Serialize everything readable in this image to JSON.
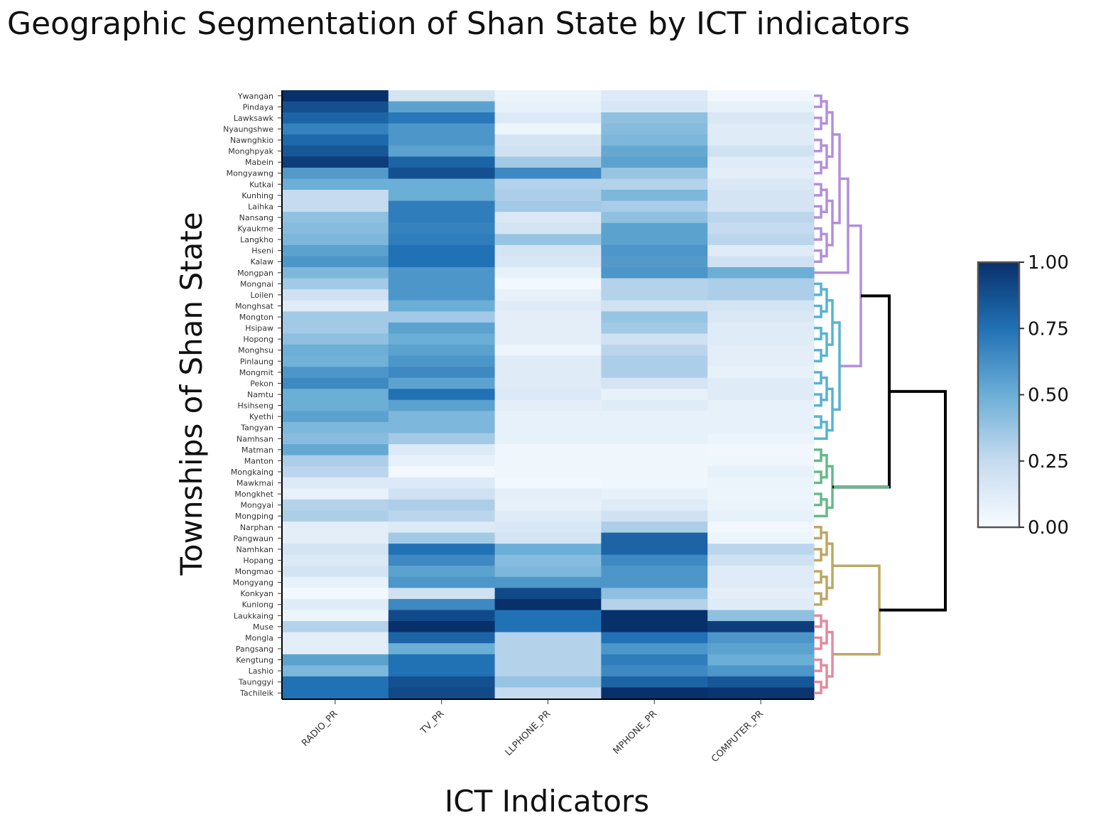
{
  "title": "Geographic Segmentation of Shan State by ICT indicators",
  "chart_data": {
    "type": "heatmap",
    "title": "Geographic Segmentation of Shan State by ICT indicators",
    "xlabel": "ICT Indicators",
    "ylabel": "Townships of Shan State",
    "columns": [
      "RADIO_PR",
      "TV_PR",
      "LLPHONE_PR",
      "MPHONE_PR",
      "COMPUTER_PR"
    ],
    "rows": [
      "Ywangan",
      "Pindaya",
      "Lawksawk",
      "Nyaungshwe",
      "Nawnghkio",
      "Monghpyak",
      "Mabein",
      "Mongyawng",
      "Kutkai",
      "Kunhing",
      "Laihka",
      "Nansang",
      "Kyaukme",
      "Langkho",
      "Hseni",
      "Kalaw",
      "Mongpan",
      "Mongnai",
      "Loilen",
      "Monghsat",
      "Mongton",
      "Hsipaw",
      "Hopong",
      "Monghsu",
      "Pinlaung",
      "Mongmit",
      "Pekon",
      "Namtu",
      "Hsihseng",
      "Kyethi",
      "Tangyan",
      "Namhsan",
      "Matman",
      "Manton",
      "Mongkaing",
      "Mawkmai",
      "Mongkhet",
      "Mongyai",
      "Mongping",
      "Narphan",
      "Pangwaun",
      "Namhkan",
      "Hopang",
      "Mongmao",
      "Mongyang",
      "Konkyan",
      "Kunlong",
      "Laukkaing",
      "Muse",
      "Mongla",
      "Pangsang",
      "Kengtung",
      "Lashio",
      "Taunggyi",
      "Tachileik"
    ],
    "values": [
      [
        1.0,
        0.18,
        0.06,
        0.13,
        0.03
      ],
      [
        0.88,
        0.55,
        0.08,
        0.16,
        0.08
      ],
      [
        0.8,
        0.72,
        0.14,
        0.4,
        0.15
      ],
      [
        0.68,
        0.6,
        0.05,
        0.42,
        0.12
      ],
      [
        0.78,
        0.6,
        0.18,
        0.45,
        0.12
      ],
      [
        0.85,
        0.55,
        0.2,
        0.52,
        0.2
      ],
      [
        0.95,
        0.8,
        0.35,
        0.55,
        0.12
      ],
      [
        0.58,
        0.88,
        0.65,
        0.38,
        0.1
      ],
      [
        0.5,
        0.5,
        0.3,
        0.3,
        0.15
      ],
      [
        0.25,
        0.5,
        0.32,
        0.45,
        0.18
      ],
      [
        0.25,
        0.7,
        0.35,
        0.33,
        0.18
      ],
      [
        0.4,
        0.7,
        0.15,
        0.4,
        0.28
      ],
      [
        0.42,
        0.68,
        0.18,
        0.55,
        0.25
      ],
      [
        0.45,
        0.7,
        0.38,
        0.55,
        0.28
      ],
      [
        0.55,
        0.75,
        0.18,
        0.6,
        0.12
      ],
      [
        0.6,
        0.75,
        0.16,
        0.58,
        0.2
      ],
      [
        0.45,
        0.6,
        0.08,
        0.6,
        0.5
      ],
      [
        0.35,
        0.6,
        0.02,
        0.3,
        0.32
      ],
      [
        0.2,
        0.6,
        0.08,
        0.3,
        0.32
      ],
      [
        0.12,
        0.5,
        0.12,
        0.2,
        0.18
      ],
      [
        0.35,
        0.35,
        0.1,
        0.38,
        0.15
      ],
      [
        0.35,
        0.55,
        0.1,
        0.35,
        0.12
      ],
      [
        0.4,
        0.5,
        0.1,
        0.2,
        0.12
      ],
      [
        0.5,
        0.55,
        0.05,
        0.28,
        0.1
      ],
      [
        0.48,
        0.6,
        0.12,
        0.32,
        0.1
      ],
      [
        0.6,
        0.65,
        0.12,
        0.32,
        0.08
      ],
      [
        0.65,
        0.55,
        0.12,
        0.18,
        0.12
      ],
      [
        0.5,
        0.75,
        0.14,
        0.08,
        0.12
      ],
      [
        0.5,
        0.55,
        0.1,
        0.12,
        0.08
      ],
      [
        0.55,
        0.45,
        0.08,
        0.08,
        0.08
      ],
      [
        0.45,
        0.45,
        0.08,
        0.08,
        0.08
      ],
      [
        0.42,
        0.35,
        0.08,
        0.08,
        0.06
      ],
      [
        0.52,
        0.14,
        0.04,
        0.04,
        0.03
      ],
      [
        0.32,
        0.08,
        0.04,
        0.04,
        0.04
      ],
      [
        0.28,
        0.02,
        0.04,
        0.04,
        0.08
      ],
      [
        0.14,
        0.14,
        0.02,
        0.04,
        0.06
      ],
      [
        0.08,
        0.2,
        0.1,
        0.08,
        0.05
      ],
      [
        0.3,
        0.32,
        0.08,
        0.12,
        0.06
      ],
      [
        0.32,
        0.28,
        0.12,
        0.2,
        0.08
      ],
      [
        0.1,
        0.14,
        0.16,
        0.32,
        0.03
      ],
      [
        0.1,
        0.35,
        0.18,
        0.8,
        0.05
      ],
      [
        0.18,
        0.75,
        0.5,
        0.8,
        0.28
      ],
      [
        0.14,
        0.65,
        0.42,
        0.65,
        0.2
      ],
      [
        0.18,
        0.55,
        0.45,
        0.6,
        0.12
      ],
      [
        0.08,
        0.6,
        0.6,
        0.6,
        0.12
      ],
      [
        0.02,
        0.2,
        0.9,
        0.4,
        0.1
      ],
      [
        0.12,
        0.65,
        1.0,
        0.3,
        0.12
      ],
      [
        0.05,
        0.9,
        0.75,
        1.0,
        0.4
      ],
      [
        0.3,
        1.0,
        0.75,
        1.0,
        0.95
      ],
      [
        0.1,
        0.8,
        0.3,
        0.75,
        0.6
      ],
      [
        0.1,
        0.5,
        0.3,
        0.6,
        0.55
      ],
      [
        0.55,
        0.75,
        0.3,
        0.7,
        0.5
      ],
      [
        0.45,
        0.75,
        0.3,
        0.65,
        0.6
      ],
      [
        0.75,
        0.88,
        0.38,
        0.8,
        0.85
      ],
      [
        0.75,
        0.9,
        0.25,
        1.0,
        0.98
      ]
    ],
    "zrange": [
      0,
      1
    ],
    "colorscale": [
      "#f7fbff",
      "#c6dbef",
      "#6baed6",
      "#2171b5",
      "#08306b"
    ],
    "colorbar_ticks": [
      "0.00",
      "0.25",
      "0.50",
      "0.75",
      "1.00"
    ],
    "dendrogram_clusters": [
      {
        "color": "#b38fd9",
        "rows": [
          0,
          16
        ]
      },
      {
        "color": "#56b4cf",
        "rows": [
          17,
          31
        ]
      },
      {
        "color": "#66b98c",
        "rows": [
          32,
          38
        ]
      },
      {
        "color": "#bba865",
        "rows": [
          39,
          46
        ]
      },
      {
        "color": "#e08ca0",
        "rows": [
          47,
          54
        ]
      }
    ],
    "dendrogram_root_color": "#000000"
  }
}
